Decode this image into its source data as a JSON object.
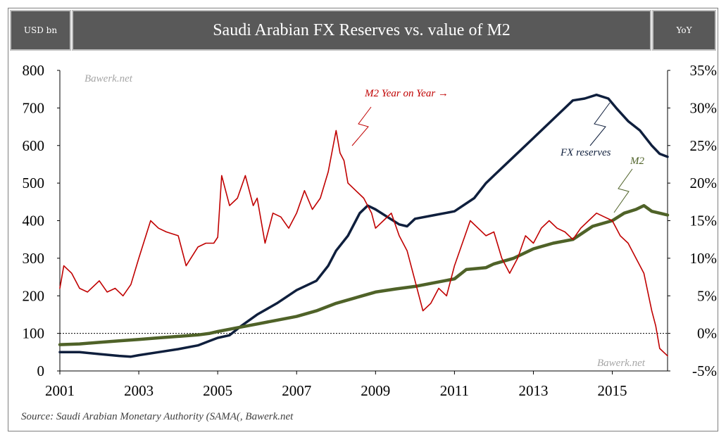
{
  "header": {
    "left_label": "USD bn",
    "title": "Saudi Arabian FX Reserves vs. value of M2",
    "right_label": "YoY"
  },
  "watermarks": [
    "Bawerk.net",
    "Bawerk.net"
  ],
  "source": "Source: Saudi Arabian Monetary Authority (SAMA(, Bawerk.net",
  "annotations": {
    "m2_yoy": "M2 Year on Year →",
    "fx": "FX reserves",
    "m2": "M2"
  },
  "colors": {
    "fx": "#0f1f3d",
    "m2": "#4f6228",
    "yoy": "#c00000",
    "header_bg": "#595959"
  },
  "chart_data": {
    "type": "line",
    "title": "Saudi Arabian FX Reserves vs. value of M2",
    "ylabel_left": "USD bn",
    "ylabel_right": "YoY",
    "xlim": [
      2001,
      2016.4
    ],
    "ylim_left": [
      0,
      800
    ],
    "ylim_right": [
      -5,
      35
    ],
    "x_ticks": [
      "2001",
      "2003",
      "2005",
      "2007",
      "2009",
      "2011",
      "2013",
      "2015"
    ],
    "y_ticks_left": [
      "800",
      "700",
      "600",
      "500",
      "400",
      "300",
      "200",
      "100",
      "0"
    ],
    "y_ticks_right": [
      "35%",
      "30%",
      "25%",
      "20%",
      "15%",
      "10%",
      "5%",
      "0%",
      "-5%"
    ],
    "reference_line": {
      "axis": "right",
      "value": 0,
      "style": "dotted"
    },
    "series": [
      {
        "name": "FX reserves",
        "axis": "left",
        "points": [
          [
            2001,
            50
          ],
          [
            2001.5,
            50
          ],
          [
            2002,
            45
          ],
          [
            2002.5,
            40
          ],
          [
            2002.8,
            38
          ],
          [
            2003,
            42
          ],
          [
            2003.5,
            50
          ],
          [
            2004,
            58
          ],
          [
            2004.5,
            68
          ],
          [
            2004.8,
            80
          ],
          [
            2005,
            88
          ],
          [
            2005.3,
            95
          ],
          [
            2005.6,
            120
          ],
          [
            2006,
            150
          ],
          [
            2006.5,
            180
          ],
          [
            2007,
            215
          ],
          [
            2007.5,
            240
          ],
          [
            2007.8,
            280
          ],
          [
            2008,
            320
          ],
          [
            2008.3,
            360
          ],
          [
            2008.6,
            420
          ],
          [
            2008.8,
            440
          ],
          [
            2009,
            430
          ],
          [
            2009.3,
            410
          ],
          [
            2009.6,
            390
          ],
          [
            2009.8,
            385
          ],
          [
            2010,
            405
          ],
          [
            2010.5,
            415
          ],
          [
            2011,
            425
          ],
          [
            2011.5,
            460
          ],
          [
            2011.8,
            500
          ],
          [
            2012,
            520
          ],
          [
            2012.5,
            570
          ],
          [
            2013,
            620
          ],
          [
            2013.5,
            670
          ],
          [
            2013.8,
            700
          ],
          [
            2014,
            720
          ],
          [
            2014.3,
            725
          ],
          [
            2014.6,
            735
          ],
          [
            2014.9,
            725
          ],
          [
            2015.1,
            700
          ],
          [
            2015.4,
            665
          ],
          [
            2015.7,
            640
          ],
          [
            2016,
            600
          ],
          [
            2016.2,
            578
          ],
          [
            2016.4,
            570
          ]
        ]
      },
      {
        "name": "M2",
        "axis": "left",
        "points": [
          [
            2001,
            70
          ],
          [
            2001.5,
            72
          ],
          [
            2002,
            76
          ],
          [
            2002.5,
            80
          ],
          [
            2003,
            84
          ],
          [
            2003.5,
            88
          ],
          [
            2004,
            92
          ],
          [
            2004.5,
            96
          ],
          [
            2004.8,
            100
          ],
          [
            2005,
            105
          ],
          [
            2005.5,
            115
          ],
          [
            2006,
            125
          ],
          [
            2006.5,
            135
          ],
          [
            2007,
            145
          ],
          [
            2007.5,
            160
          ],
          [
            2008,
            180
          ],
          [
            2008.5,
            195
          ],
          [
            2009,
            210
          ],
          [
            2009.5,
            218
          ],
          [
            2010,
            225
          ],
          [
            2010.5,
            235
          ],
          [
            2011,
            245
          ],
          [
            2011.3,
            270
          ],
          [
            2011.8,
            275
          ],
          [
            2012,
            285
          ],
          [
            2012.5,
            300
          ],
          [
            2013,
            325
          ],
          [
            2013.5,
            340
          ],
          [
            2014,
            350
          ],
          [
            2014.5,
            385
          ],
          [
            2015,
            400
          ],
          [
            2015.3,
            420
          ],
          [
            2015.6,
            430
          ],
          [
            2015.8,
            440
          ],
          [
            2016,
            425
          ],
          [
            2016.2,
            420
          ],
          [
            2016.4,
            415
          ]
        ]
      },
      {
        "name": "M2 Year on Year",
        "axis": "right",
        "points": [
          [
            2001,
            6
          ],
          [
            2001.1,
            9
          ],
          [
            2001.3,
            8
          ],
          [
            2001.5,
            6
          ],
          [
            2001.7,
            5.5
          ],
          [
            2002,
            7
          ],
          [
            2002.2,
            5.5
          ],
          [
            2002.4,
            6
          ],
          [
            2002.6,
            5
          ],
          [
            2002.8,
            6.5
          ],
          [
            2003,
            10
          ],
          [
            2003.3,
            15
          ],
          [
            2003.5,
            14
          ],
          [
            2003.7,
            13.5
          ],
          [
            2004,
            13
          ],
          [
            2004.2,
            9
          ],
          [
            2004.5,
            11.5
          ],
          [
            2004.7,
            12
          ],
          [
            2004.9,
            12
          ],
          [
            2005,
            12.8
          ],
          [
            2005.1,
            21
          ],
          [
            2005.3,
            17
          ],
          [
            2005.5,
            18
          ],
          [
            2005.7,
            21
          ],
          [
            2005.9,
            17
          ],
          [
            2006,
            18
          ],
          [
            2006.2,
            12
          ],
          [
            2006.4,
            16
          ],
          [
            2006.6,
            15.5
          ],
          [
            2006.8,
            14
          ],
          [
            2007,
            16
          ],
          [
            2007.2,
            19
          ],
          [
            2007.4,
            16.5
          ],
          [
            2007.6,
            18
          ],
          [
            2007.8,
            21.5
          ],
          [
            2008,
            27
          ],
          [
            2008.1,
            24
          ],
          [
            2008.2,
            23
          ],
          [
            2008.3,
            20
          ],
          [
            2008.5,
            19
          ],
          [
            2008.7,
            18
          ],
          [
            2008.9,
            16
          ],
          [
            2009,
            14
          ],
          [
            2009.2,
            15
          ],
          [
            2009.4,
            16
          ],
          [
            2009.6,
            13
          ],
          [
            2009.8,
            11
          ],
          [
            2010,
            7
          ],
          [
            2010.2,
            3
          ],
          [
            2010.4,
            4
          ],
          [
            2010.6,
            6
          ],
          [
            2010.8,
            5
          ],
          [
            2011,
            9
          ],
          [
            2011.2,
            12
          ],
          [
            2011.4,
            15
          ],
          [
            2011.6,
            14
          ],
          [
            2011.8,
            13
          ],
          [
            2012,
            13.5
          ],
          [
            2012.2,
            10
          ],
          [
            2012.4,
            8
          ],
          [
            2012.6,
            10
          ],
          [
            2012.8,
            13
          ],
          [
            2013,
            12
          ],
          [
            2013.2,
            14
          ],
          [
            2013.4,
            15
          ],
          [
            2013.6,
            14
          ],
          [
            2013.8,
            13.5
          ],
          [
            2014,
            12.5
          ],
          [
            2014.2,
            14
          ],
          [
            2014.4,
            15
          ],
          [
            2014.6,
            16
          ],
          [
            2014.8,
            15.5
          ],
          [
            2015,
            15
          ],
          [
            2015.2,
            13
          ],
          [
            2015.4,
            12
          ],
          [
            2015.6,
            10
          ],
          [
            2015.8,
            8
          ],
          [
            2016,
            3
          ],
          [
            2016.1,
            1
          ],
          [
            2016.2,
            -2
          ],
          [
            2016.3,
            -2.5
          ],
          [
            2016.4,
            -3
          ]
        ]
      }
    ]
  }
}
